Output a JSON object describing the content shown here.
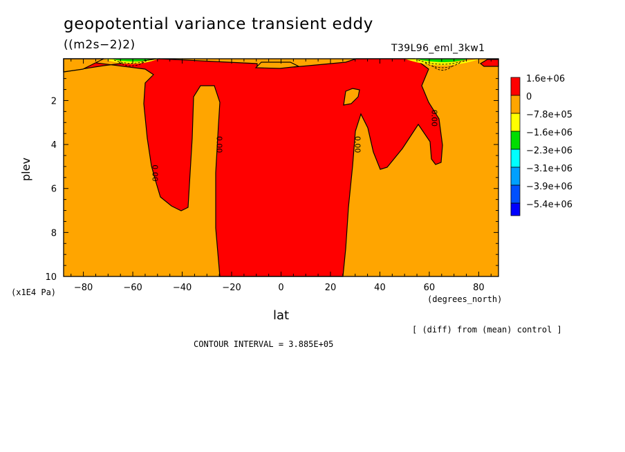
{
  "header": {
    "title": "geopotential variance transient eddy",
    "units": "((m2s−2)2)",
    "run_id": "T39L96_eml_3kw1"
  },
  "footer": {
    "contour_interval": "CONTOUR INTERVAL = 3.885E+05",
    "diff_note": "[ (diff) from (mean) control ]"
  },
  "chart_data": {
    "type": "heatmap",
    "title": "geopotential variance transient eddy",
    "subtitle": "((m2s−2)2)",
    "xlabel": "lat",
    "x_units": "(degrees_north)",
    "ylabel": "plev",
    "y_units": "(x1E4 Pa)",
    "xlim": [
      -88,
      88
    ],
    "ylim": [
      10,
      0.1
    ],
    "x_ticks": [
      -80,
      -60,
      -40,
      -20,
      0,
      20,
      40,
      60,
      80
    ],
    "x_tick_labels": [
      "−80",
      "−60",
      "−40",
      "−20",
      "0",
      "20",
      "40",
      "60",
      "80"
    ],
    "y_ticks": [
      2,
      4,
      6,
      8,
      10
    ],
    "y_tick_labels": [
      "2",
      "4",
      "6",
      "8",
      "10"
    ],
    "contour_labels": [
      {
        "text": "0.00",
        "lat": -52,
        "plev": 5.3
      },
      {
        "text": "0.00",
        "lat": -26,
        "plev": 4.0
      },
      {
        "text": "0.00",
        "lat": 30,
        "plev": 4.0
      },
      {
        "text": "0.00",
        "lat": 61,
        "plev": 2.8
      }
    ],
    "legend": {
      "position": "right",
      "levels": [
        {
          "label": "1.6e+06",
          "color": "#ff0000"
        },
        {
          "label": "0",
          "color": "#ffa500"
        },
        {
          "label": "−7.8e+05",
          "color": "#ffff00"
        },
        {
          "label": "−1.6e+06",
          "color": "#00dd00"
        },
        {
          "label": "−2.3e+06",
          "color": "#00ffff"
        },
        {
          "label": "−3.1e+06",
          "color": "#00a0ff"
        },
        {
          "label": "−3.9e+06",
          "color": "#0050ff"
        },
        {
          "label": "−5.4e+06",
          "color": "#0000ff"
        }
      ]
    },
    "regions": [
      {
        "name": "positive-region",
        "color": "#ff0000"
      },
      {
        "name": "near-zero-background",
        "color": "#ffa500"
      }
    ]
  }
}
